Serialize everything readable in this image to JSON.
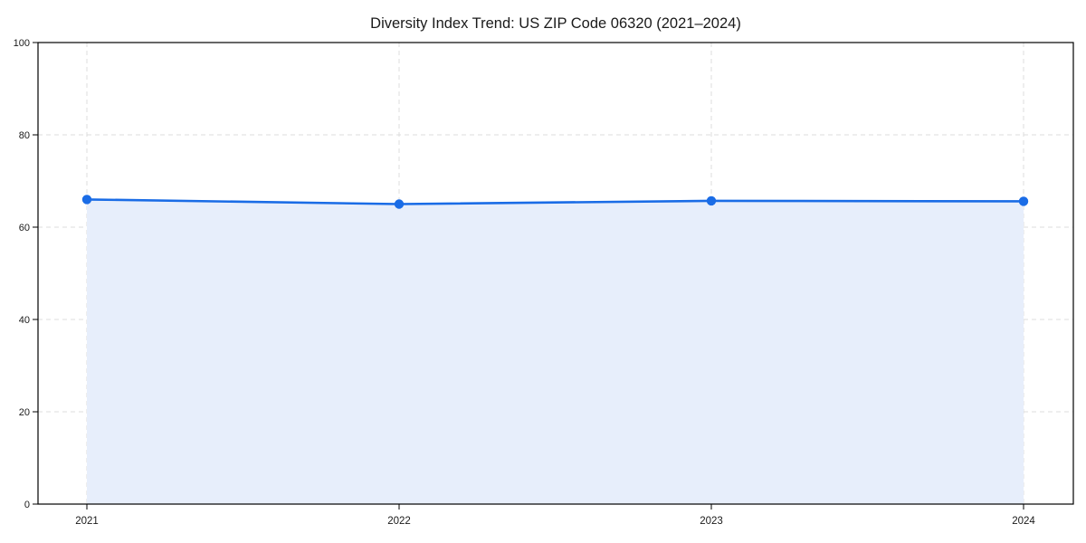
{
  "page": {
    "background": "#ffffff"
  },
  "chart_data": {
    "type": "line",
    "title": "Diversity Index Trend: US ZIP Code 06320 (2021–2024)",
    "x": [
      "2021",
      "2022",
      "2023",
      "2024"
    ],
    "series": [
      {
        "name": "Diversity Index",
        "values": [
          66.0,
          65.0,
          65.7,
          65.6
        ]
      }
    ],
    "xlabel": "",
    "ylabel": "",
    "ylim": [
      0,
      100
    ],
    "yticks": [
      0,
      20,
      40,
      60,
      80,
      100
    ],
    "grid": "on",
    "grid_style": "dashed",
    "legend": "none",
    "area_fill": true,
    "marker": "circle",
    "colors": {
      "line": "#1a6ce6",
      "marker": "#1a6ce6",
      "fill": "#e7eefb",
      "grid": "#dcdcdc",
      "spine": "#000000",
      "text": "#1a1a1a"
    }
  }
}
